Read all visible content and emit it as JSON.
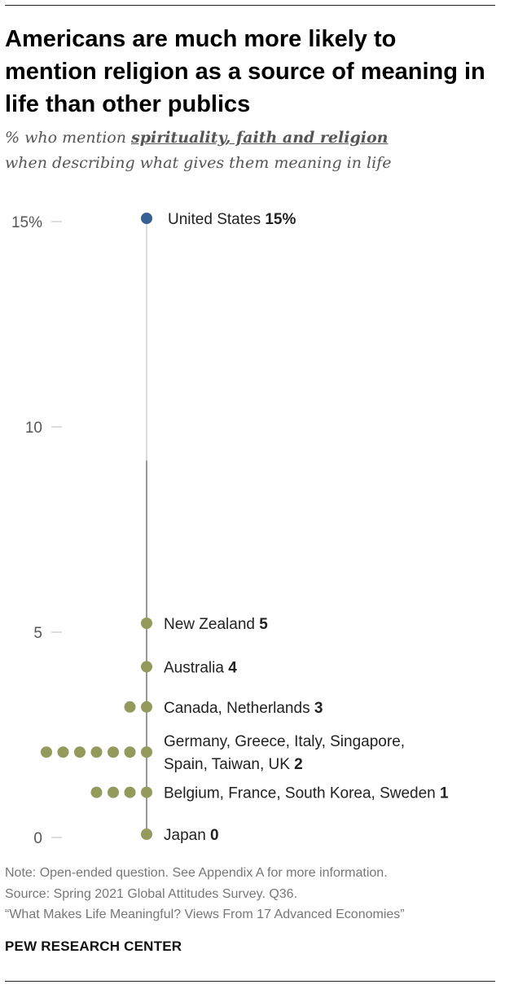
{
  "title": "Americans are much more likely to mention religion as a source of meaning in life than other publics",
  "subtitle": {
    "prefix": "% who mention ",
    "highlight": "spirituality, faith and religion",
    "line2": "when describing what gives them meaning in life"
  },
  "chart_data": {
    "type": "scatter",
    "title": "Americans are much more likely to mention religion as a source of meaning in life than other publics",
    "xlabel": "",
    "ylabel": "",
    "ylim": [
      0,
      15
    ],
    "y_ticks": [
      "15%",
      "10",
      "5",
      "0"
    ],
    "y_tick_values": [
      15,
      10,
      5,
      0
    ],
    "grid": false,
    "legend": "none",
    "highlight_color": "#346092",
    "other_color": "#949a5b",
    "groups": [
      {
        "label": "United States",
        "value_label": "15%",
        "value": 15,
        "count": 1,
        "highlight": true
      },
      {
        "label": "New Zealand",
        "value_label": "5",
        "value": 5,
        "count": 1,
        "highlight": false
      },
      {
        "label": "Australia",
        "value_label": "4",
        "value": 4,
        "count": 1,
        "highlight": false
      },
      {
        "label": "Canada, Netherlands",
        "value_label": "3",
        "value": 3,
        "count": 2,
        "highlight": false
      },
      {
        "label": "Germany, Greece, Italy, Singapore, Spain, Taiwan, UK",
        "label_lines": [
          "Germany, Greece, Italy, Singapore,",
          "Spain, Taiwan, UK"
        ],
        "value_label": "2",
        "value": 2,
        "count": 7,
        "highlight": false
      },
      {
        "label": "Belgium, France, South Korea, Sweden",
        "value_label": "1",
        "value": 1,
        "count": 4,
        "highlight": false
      },
      {
        "label": "Japan",
        "value_label": "0",
        "value": 0,
        "count": 1,
        "highlight": false
      }
    ]
  },
  "notes": {
    "note": "Note: Open-ended question. See Appendix A for more information.",
    "source": "Source: Spring 2021 Global Attitudes Survey. Q36.",
    "report": "“What Makes Life Meaningful? Views From 17 Advanced Economies”"
  },
  "brand": "PEW RESEARCH CENTER"
}
